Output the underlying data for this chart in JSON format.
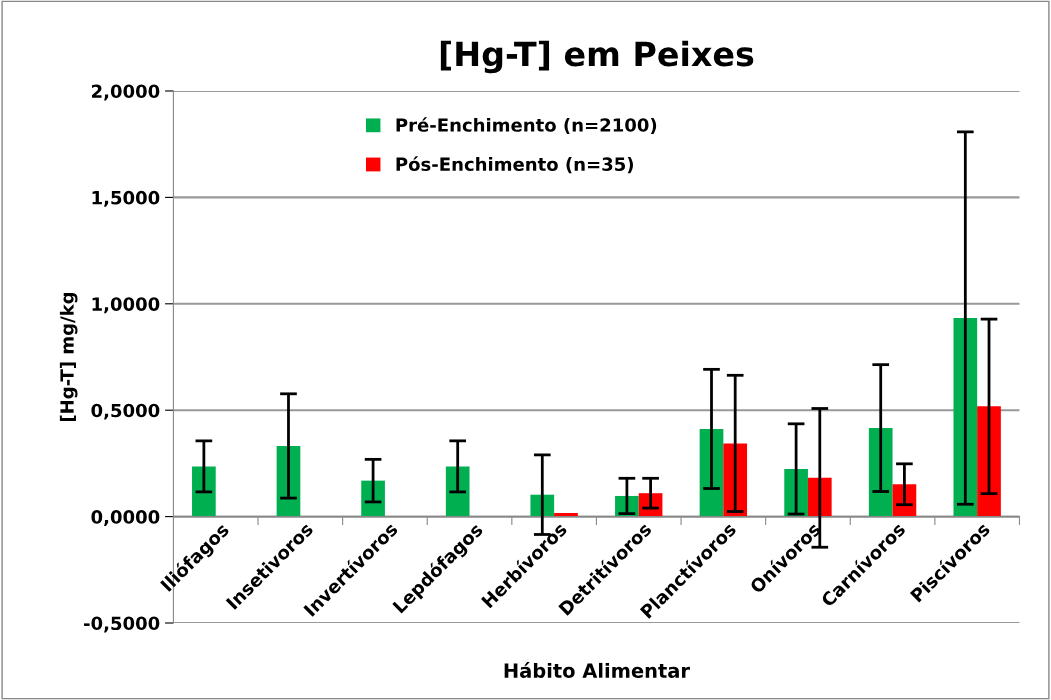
{
  "chart_data": {
    "type": "bar",
    "title": "[Hg-T] em Peixes",
    "xlabel": "Hábito Alimentar",
    "ylabel": "[Hg-T] mg/kg",
    "categories": [
      "Iliófagos",
      "Insetivoros",
      "Invertívoros",
      "Lepdófagos",
      "Herbívoros",
      "Detritívoros",
      "Planctívoros",
      "Onívoros",
      "Carnívoros",
      "Piscívoros"
    ],
    "series": [
      {
        "name": "Pré-Enchimento (n=2100)",
        "color": "#00b050",
        "values": [
          0.236,
          0.332,
          0.169,
          0.236,
          0.103,
          0.097,
          0.412,
          0.224,
          0.416,
          0.933
        ],
        "errors": [
          0.12,
          0.245,
          0.1,
          0.12,
          0.187,
          0.083,
          0.28,
          0.212,
          0.298,
          0.875
        ]
      },
      {
        "name": "Pós-Enchimento (n=35)",
        "color": "#ff0000",
        "values": [
          null,
          null,
          null,
          null,
          0.017,
          0.11,
          0.344,
          0.182,
          0.152,
          0.518
        ],
        "errors": [
          null,
          null,
          null,
          null,
          null,
          0.07,
          0.32,
          0.326,
          0.096,
          0.41
        ]
      }
    ],
    "ylim": [
      -0.5,
      2.0
    ],
    "yticks": [
      {
        "value": -0.5,
        "label": "-0,5000"
      },
      {
        "value": 0,
        "label": "0,0000"
      },
      {
        "value": 0.5,
        "label": "0,5000"
      },
      {
        "value": 1.0,
        "label": "1,0000"
      },
      {
        "value": 1.5,
        "label": "1,5000"
      },
      {
        "value": 2.0,
        "label": "2,0000"
      }
    ],
    "grid": "y",
    "legend": "top"
  }
}
